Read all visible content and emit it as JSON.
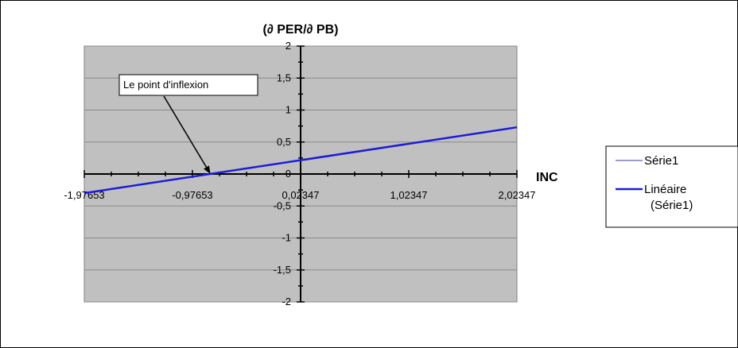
{
  "chart_data": {
    "type": "line",
    "title": "(∂ PER/∂ PB)",
    "xlabel": "INC",
    "ylabel": "",
    "xlim": [
      -1.97653,
      2.02347
    ],
    "ylim": [
      -2,
      2
    ],
    "x_ticks": [
      -1.97653,
      -0.97653,
      0.02347,
      1.02347,
      2.02347
    ],
    "x_tick_labels": [
      "-1,97653",
      "-0,97653",
      "0,02347",
      "1,02347",
      "2,02347"
    ],
    "y_ticks": [
      -2,
      -1.5,
      -1,
      -0.5,
      0,
      0.5,
      1,
      1.5,
      2
    ],
    "y_tick_labels": [
      "-2",
      "-1,5",
      "-1",
      "-0,5",
      "0",
      "0,5",
      "1",
      "1,5",
      "2"
    ],
    "grid": true,
    "legend_position": "right",
    "series": [
      {
        "name": "Série1",
        "x": [],
        "y": [],
        "color": "#3a3aa0"
      },
      {
        "name": "Linéaire (Série1)",
        "x": [
          -1.97653,
          2.02347
        ],
        "y": [
          -0.3,
          0.73
        ],
        "color": "#1c1cd8"
      }
    ],
    "annotation": {
      "text": "Le point d'inflexion",
      "x": -0.81,
      "y": 0
    },
    "colors": {
      "plot_bg": "#c0c0c0",
      "grid": "#8a8a8a",
      "axis": "#000000"
    }
  },
  "legend": {
    "items": [
      {
        "label_lines": [
          "Série1"
        ]
      },
      {
        "label_lines": [
          "Linéaire",
          "(Série1)"
        ]
      }
    ]
  }
}
